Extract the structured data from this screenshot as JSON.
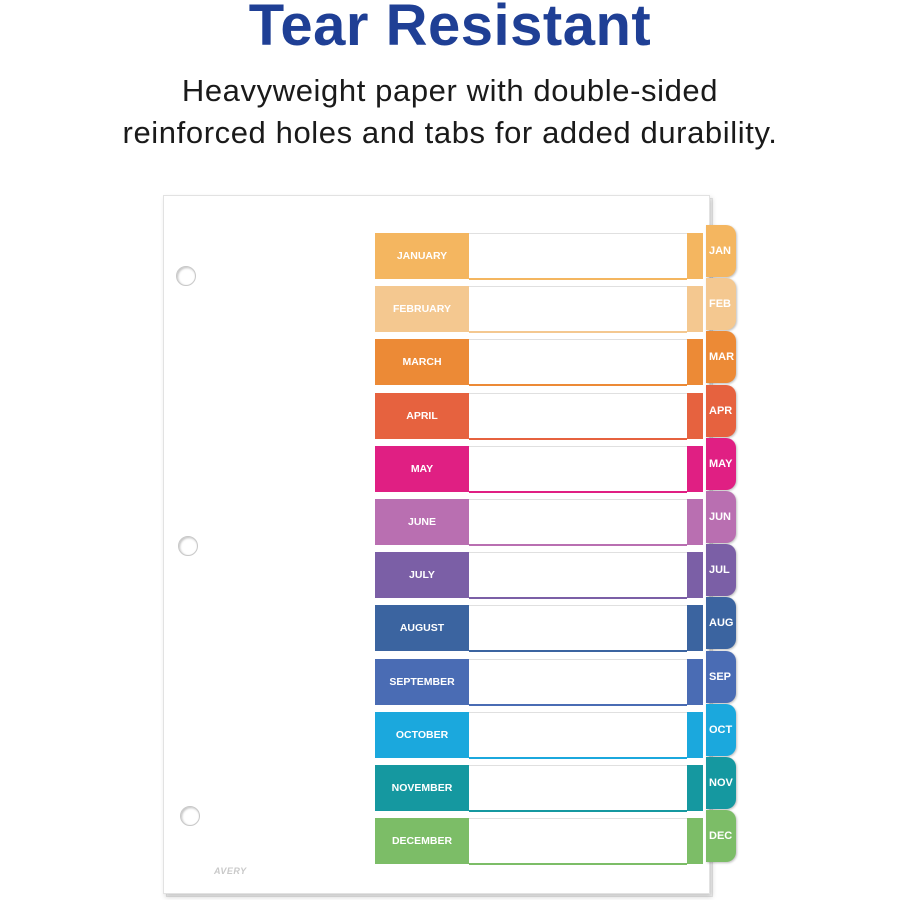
{
  "header": {
    "title": "Tear Resistant",
    "subtitle_line1": "Heavyweight paper with double-sided",
    "subtitle_line2": "reinforced holes and tabs for added durability."
  },
  "logo_text": "AVERY",
  "months": [
    {
      "label": "JANUARY",
      "tab": "JAN",
      "color": "#f4b660"
    },
    {
      "label": "FEBRUARY",
      "tab": "FEB",
      "color": "#f4c890"
    },
    {
      "label": "MARCH",
      "tab": "MAR",
      "color": "#ec8a36"
    },
    {
      "label": "APRIL",
      "tab": "APR",
      "color": "#e6623f"
    },
    {
      "label": "MAY",
      "tab": "MAY",
      "color": "#e01f83"
    },
    {
      "label": "JUNE",
      "tab": "JUN",
      "color": "#b96fb1"
    },
    {
      "label": "JULY",
      "tab": "JUL",
      "color": "#7b5fa6"
    },
    {
      "label": "AUGUST",
      "tab": "AUG",
      "color": "#3b64a0"
    },
    {
      "label": "SEPTEMBER",
      "tab": "SEP",
      "color": "#4a6cb4"
    },
    {
      "label": "OCTOBER",
      "tab": "OCT",
      "color": "#1ba8dd"
    },
    {
      "label": "NOVEMBER",
      "tab": "NOV",
      "color": "#1598a0"
    },
    {
      "label": "DECEMBER",
      "tab": "DEC",
      "color": "#7cbd67"
    }
  ]
}
